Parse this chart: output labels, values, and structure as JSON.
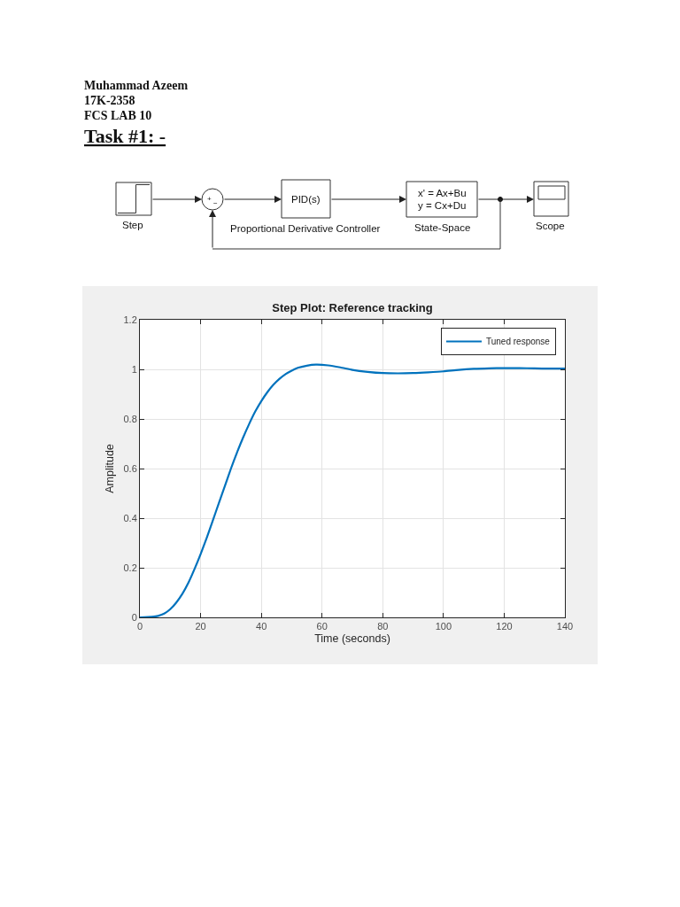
{
  "chart_data": {
    "type": "line",
    "title": "Step Plot: Reference tracking",
    "xlabel": "Time (seconds)",
    "ylabel": "Amplitude",
    "x": [
      0,
      4,
      6,
      8,
      10,
      12,
      14,
      16,
      18,
      20,
      22,
      24,
      26,
      28,
      30,
      32,
      34,
      36,
      38,
      40,
      42,
      44,
      46,
      48,
      50,
      52,
      55,
      58,
      62,
      66,
      70,
      75,
      80,
      85,
      90,
      95,
      100,
      105,
      110,
      115,
      120,
      125,
      130,
      135,
      140
    ],
    "series": [
      {
        "name": "Tuned response",
        "color": "#0072bd",
        "values": [
          0,
          0.002,
          0.006,
          0.015,
          0.033,
          0.06,
          0.095,
          0.14,
          0.195,
          0.255,
          0.32,
          0.39,
          0.46,
          0.53,
          0.6,
          0.665,
          0.725,
          0.78,
          0.83,
          0.872,
          0.908,
          0.938,
          0.962,
          0.981,
          0.995,
          1.006,
          1.015,
          1.019,
          1.016,
          1.008,
          0.998,
          0.99,
          0.985,
          0.984,
          0.985,
          0.988,
          0.992,
          0.998,
          1.002,
          1.004,
          1.005,
          1.005,
          1.004,
          1.003,
          1.003
        ]
      }
    ],
    "xlim": [
      0,
      140
    ],
    "xticks": [
      0,
      20,
      40,
      60,
      80,
      100,
      120,
      140
    ],
    "ylim": [
      0,
      1.2
    ],
    "yticks": [
      0,
      0.2,
      0.4,
      0.6,
      0.8,
      1,
      1.2
    ],
    "grid": true,
    "legend": "top right",
    "annotations": [
      "Muhammad Azeem",
      "17K-2358",
      "FCS LAB 10",
      "Task #1: -",
      "Step",
      "+",
      "−",
      "PID(s)",
      "Proportional Derivative Controller",
      "x' = Ax+Bu",
      "y = Cx+Du",
      "State-Space",
      "Scope"
    ]
  }
}
